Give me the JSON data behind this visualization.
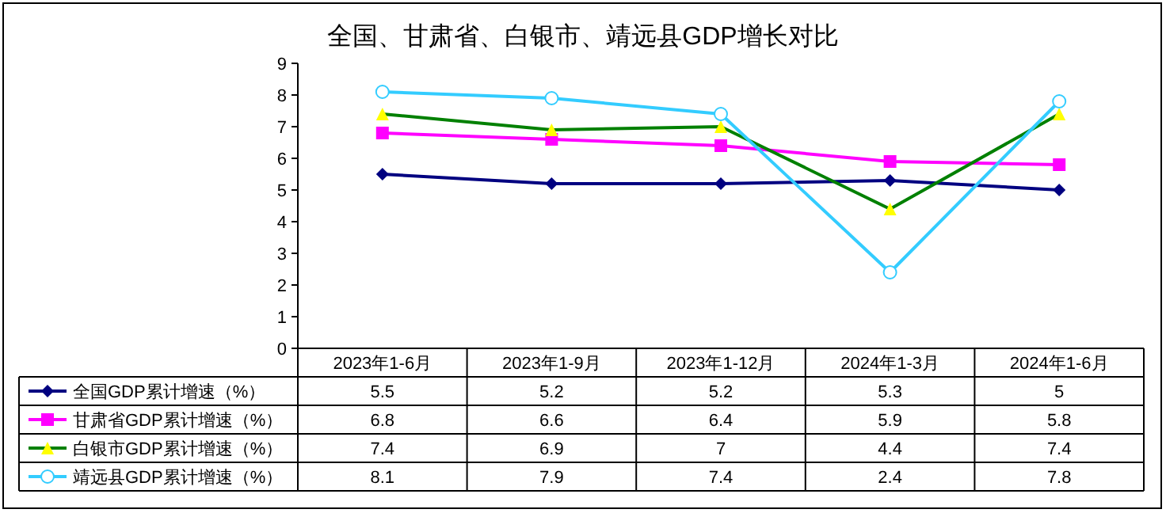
{
  "chart_data": {
    "type": "line",
    "title": "全国、甘肃省、白银市、靖远县GDP增长对比",
    "categories": [
      "2023年1-6月",
      "2023年1-9月",
      "2023年1-12月",
      "2024年1-3月",
      "2024年1-6月"
    ],
    "series": [
      {
        "name": "全国GDP累计增速（%）",
        "color": "#000080",
        "marker": "diamond",
        "values": [
          5.5,
          5.2,
          5.2,
          5.3,
          5
        ]
      },
      {
        "name": "甘肃省GDP累计增速（%）",
        "color": "#ff00ff",
        "marker": "square",
        "values": [
          6.8,
          6.6,
          6.4,
          5.9,
          5.8
        ]
      },
      {
        "name": "白银市GDP累计增速（%）",
        "color": "#008000",
        "marker": "triangle",
        "values": [
          7.4,
          6.9,
          7,
          4.4,
          7.4
        ]
      },
      {
        "name": "靖远县GDP累计增速（%）",
        "color": "#33ccff",
        "marker": "circle",
        "values": [
          8.1,
          7.9,
          7.4,
          2.4,
          7.8
        ]
      }
    ],
    "ylim": [
      0,
      9
    ],
    "yticks": [
      0,
      1,
      2,
      3,
      4,
      5,
      6,
      7,
      8,
      9
    ],
    "data_labels": true,
    "legend": "bottom"
  }
}
